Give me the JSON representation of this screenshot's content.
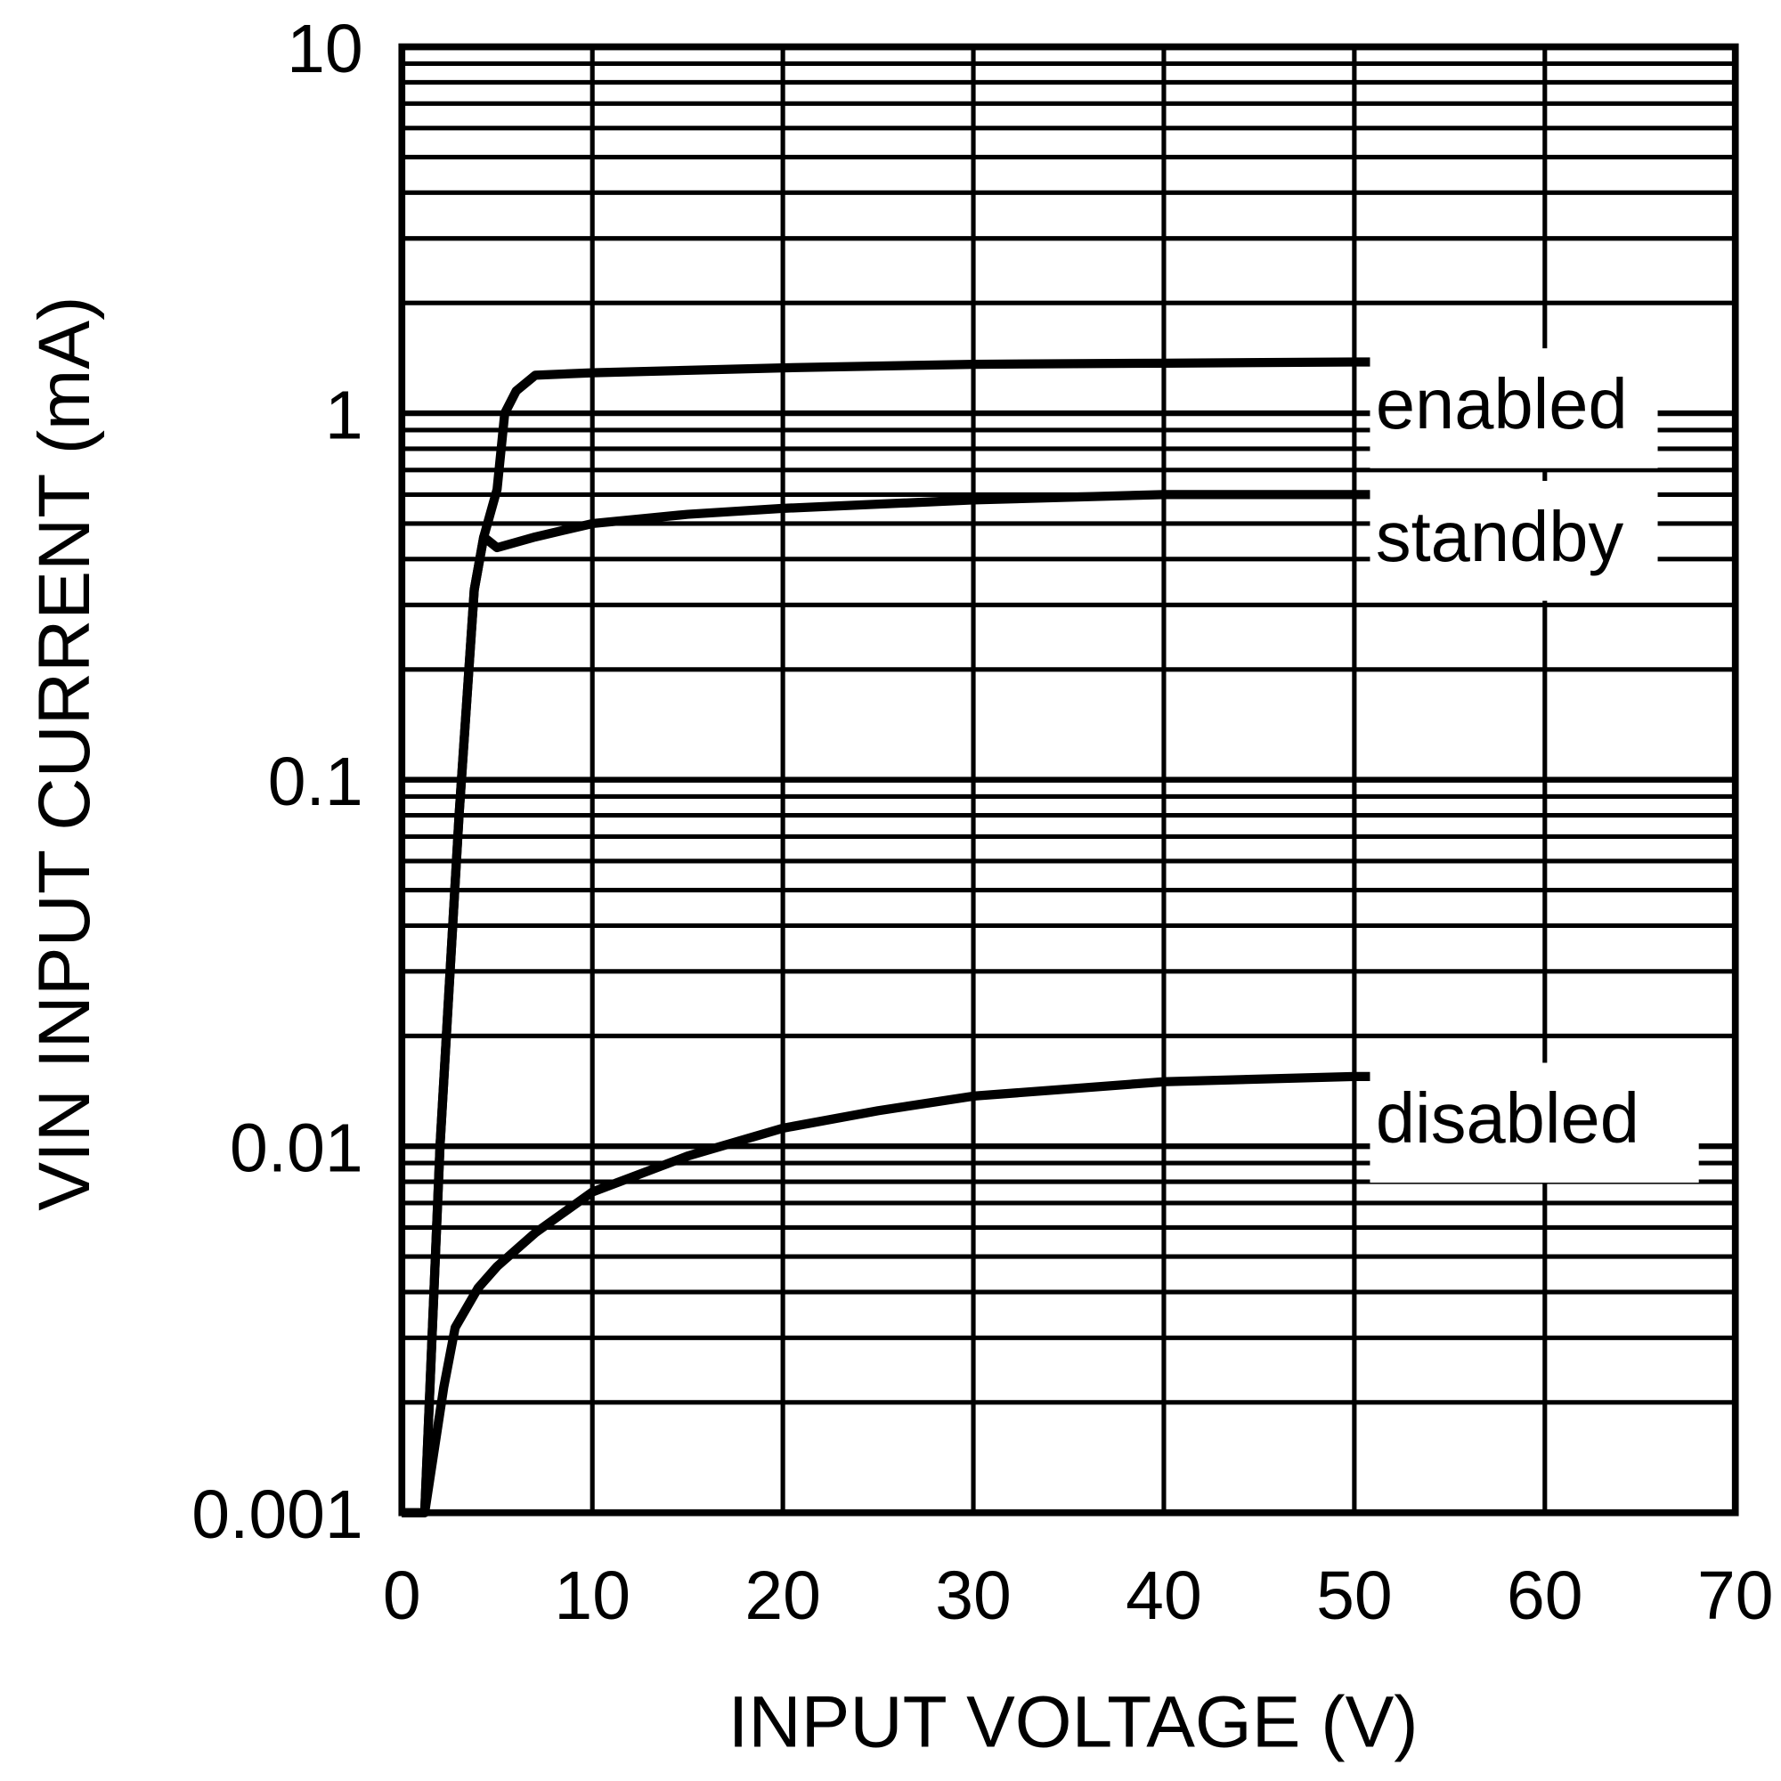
{
  "chart_data": {
    "type": "line",
    "title": "",
    "xlabel": "INPUT VOLTAGE (V)",
    "ylabel": "VIN INPUT CURRENT (mA)",
    "xlim": [
      0,
      70
    ],
    "ylim": [
      0.001,
      10
    ],
    "yscale": "log",
    "grid": true,
    "x_ticks": [
      "0",
      "10",
      "20",
      "30",
      "40",
      "50",
      "60",
      "70"
    ],
    "y_ticks": [
      "0.001",
      "0.01",
      "0.1",
      "1",
      "10"
    ],
    "line_color": "#000000",
    "series": [
      {
        "name": "enabled",
        "points": [
          [
            0,
            0.001
          ],
          [
            1.2,
            0.001
          ],
          [
            2,
            0.01
          ],
          [
            3,
            0.08
          ],
          [
            3.8,
            0.33
          ],
          [
            4.3,
            0.46
          ],
          [
            5,
            0.62
          ],
          [
            5.4,
            1.0
          ],
          [
            6,
            1.15
          ],
          [
            7,
            1.27
          ],
          [
            10,
            1.29
          ],
          [
            20,
            1.33
          ],
          [
            30,
            1.36
          ],
          [
            40,
            1.37
          ],
          [
            50,
            1.38
          ],
          [
            65,
            1.38
          ]
        ]
      },
      {
        "name": "standby",
        "points": [
          [
            0,
            0.001
          ],
          [
            1.2,
            0.001
          ],
          [
            2,
            0.01
          ],
          [
            3,
            0.08
          ],
          [
            3.8,
            0.33
          ],
          [
            4.3,
            0.46
          ],
          [
            5,
            0.43
          ],
          [
            7,
            0.46
          ],
          [
            10,
            0.5
          ],
          [
            15,
            0.53
          ],
          [
            20,
            0.55
          ],
          [
            30,
            0.58
          ],
          [
            40,
            0.6
          ],
          [
            50,
            0.6
          ],
          [
            65,
            0.6
          ]
        ]
      },
      {
        "name": "disabled",
        "points": [
          [
            0,
            0.001
          ],
          [
            1.2,
            0.001
          ],
          [
            2.2,
            0.0022
          ],
          [
            2.8,
            0.0032
          ],
          [
            4,
            0.0041
          ],
          [
            5,
            0.0047
          ],
          [
            7,
            0.0058
          ],
          [
            10,
            0.0075
          ],
          [
            15,
            0.0094
          ],
          [
            20,
            0.0112
          ],
          [
            25,
            0.0125
          ],
          [
            30,
            0.0137
          ],
          [
            40,
            0.015
          ],
          [
            50,
            0.0155
          ],
          [
            65,
            0.0155
          ]
        ]
      }
    ]
  }
}
